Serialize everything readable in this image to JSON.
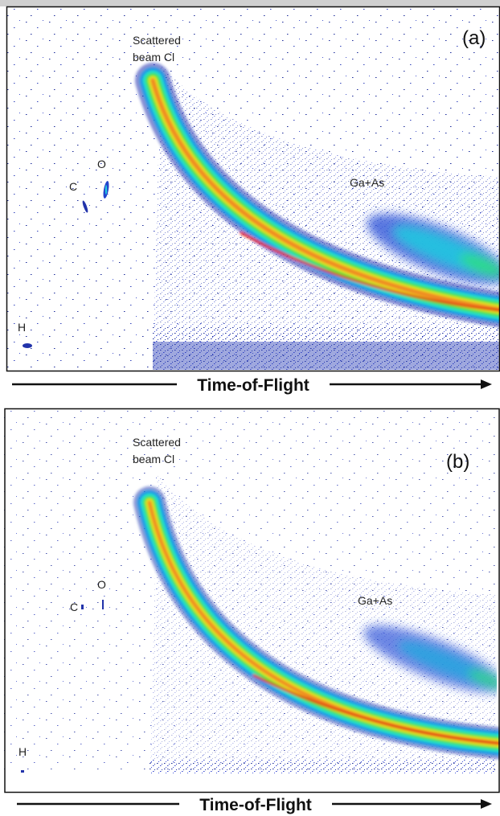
{
  "panels": [
    {
      "label": "(a)",
      "beam_label": [
        "Scattered",
        "beam Cl"
      ],
      "peaks": {
        "c": "C",
        "o": "O",
        "h": "H"
      },
      "cluster": "Ga+As",
      "axis_label": "Time-of-Flight"
    },
    {
      "label": "(b)",
      "beam_label": [
        "Scattered",
        "beam Cl"
      ],
      "peaks": {
        "c": "C",
        "o": "O",
        "h": "H"
      },
      "cluster": "Ga+As",
      "axis_label": "Time-of-Flight"
    }
  ]
}
